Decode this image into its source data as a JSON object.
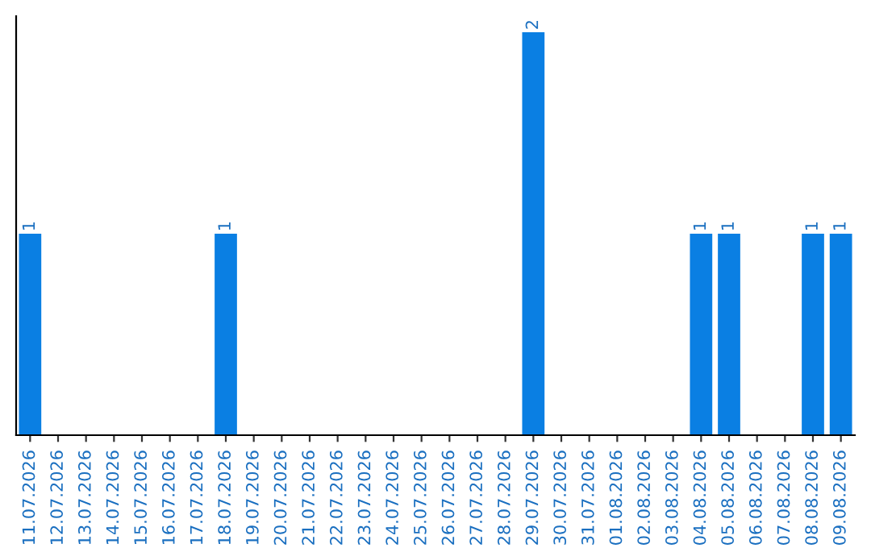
{
  "chart_data": {
    "type": "bar",
    "categories": [
      "11.07.2026",
      "12.07.2026",
      "13.07.2026",
      "14.07.2026",
      "15.07.2026",
      "16.07.2026",
      "17.07.2026",
      "18.07.2026",
      "19.07.2026",
      "20.07.2026",
      "21.07.2026",
      "22.07.2026",
      "23.07.2026",
      "24.07.2026",
      "25.07.2026",
      "26.07.2026",
      "27.07.2026",
      "28.07.2026",
      "29.07.2026",
      "30.07.2026",
      "31.07.2026",
      "01.08.2026",
      "02.08.2026",
      "03.08.2026",
      "04.08.2026",
      "05.08.2026",
      "06.08.2026",
      "07.08.2026",
      "08.08.2026",
      "09.08.2026"
    ],
    "values": [
      1,
      0,
      0,
      0,
      0,
      0,
      0,
      1,
      0,
      0,
      0,
      0,
      0,
      0,
      0,
      0,
      0,
      0,
      2,
      0,
      0,
      0,
      0,
      0,
      1,
      1,
      0,
      0,
      1,
      1
    ],
    "color": "#0a7fe3",
    "ylim": [
      0,
      2.08
    ],
    "tick_labels": "x",
    "grid": false,
    "legend": false,
    "value_labels": [
      "1",
      null,
      null,
      null,
      null,
      null,
      null,
      "1",
      null,
      null,
      null,
      null,
      null,
      null,
      null,
      null,
      null,
      null,
      "2",
      null,
      null,
      null,
      null,
      null,
      "1",
      "1",
      null,
      null,
      "1",
      "1"
    ]
  }
}
